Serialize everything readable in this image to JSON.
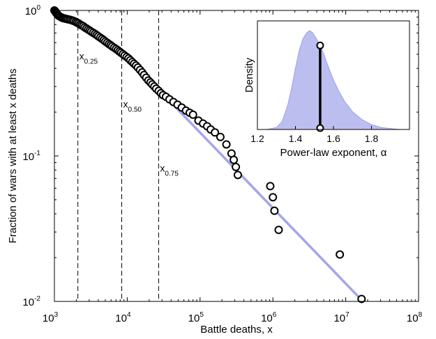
{
  "chart_data": [
    {
      "type": "scatter",
      "title": "",
      "xlabel": "Battle deaths, x",
      "ylabel": "Fraction of wars with at least x deaths",
      "x_scale": "log",
      "y_scale": "log",
      "xlim": [
        1000,
        100000000
      ],
      "ylim": [
        0.01,
        1
      ],
      "x_ticks": [
        {
          "value": 1000,
          "base": "10",
          "exp": "3"
        },
        {
          "value": 10000,
          "base": "10",
          "exp": "4"
        },
        {
          "value": 100000,
          "base": "10",
          "exp": "5"
        },
        {
          "value": 1000000,
          "base": "10",
          "exp": "6"
        },
        {
          "value": 10000000,
          "base": "10",
          "exp": "7"
        },
        {
          "value": 100000000,
          "base": "10",
          "exp": "8"
        }
      ],
      "y_ticks": [
        {
          "value": 0.01,
          "base": "10",
          "exp": "-2"
        },
        {
          "value": 0.1,
          "base": "10",
          "exp": "-1"
        },
        {
          "value": 1,
          "base": "10",
          "exp": "0"
        }
      ],
      "grid": false,
      "colors": {
        "fit_line": "#a3a6e8",
        "markers": "#000000",
        "guides": "#000000"
      },
      "series": [
        {
          "kind": "markers",
          "points": [
            [
              1000,
              1.0
            ],
            [
              1020,
              0.99
            ],
            [
              1040,
              0.975
            ],
            [
              1060,
              0.96
            ],
            [
              1080,
              0.95
            ],
            [
              1110,
              0.935
            ],
            [
              1140,
              0.92
            ],
            [
              1180,
              0.91
            ],
            [
              1230,
              0.9
            ],
            [
              1280,
              0.89
            ],
            [
              1330,
              0.885
            ],
            [
              1390,
              0.88
            ],
            [
              1450,
              0.875
            ],
            [
              1520,
              0.87
            ],
            [
              1600,
              0.865
            ],
            [
              1680,
              0.86
            ],
            [
              1770,
              0.852
            ],
            [
              1860,
              0.845
            ],
            [
              1960,
              0.835
            ],
            [
              2050,
              0.825
            ],
            [
              2150,
              0.815
            ],
            [
              2250,
              0.8
            ],
            [
              2360,
              0.79
            ],
            [
              2480,
              0.78
            ],
            [
              2600,
              0.765
            ],
            [
              2750,
              0.752
            ],
            [
              2900,
              0.74
            ],
            [
              3050,
              0.728
            ],
            [
              3200,
              0.716
            ],
            [
              3400,
              0.703
            ],
            [
              3600,
              0.69
            ],
            [
              3800,
              0.677
            ],
            [
              4000,
              0.664
            ],
            [
              4250,
              0.651
            ],
            [
              4500,
              0.638
            ],
            [
              4750,
              0.625
            ],
            [
              5000,
              0.612
            ],
            [
              5300,
              0.6
            ],
            [
              5600,
              0.588
            ],
            [
              5900,
              0.577
            ],
            [
              6200,
              0.566
            ],
            [
              6600,
              0.555
            ],
            [
              7000,
              0.544
            ],
            [
              7400,
              0.533
            ],
            [
              7800,
              0.522
            ],
            [
              8200,
              0.512
            ],
            [
              8700,
              0.501
            ],
            [
              9200,
              0.49
            ],
            [
              9800,
              0.479
            ],
            [
              10400,
              0.468
            ],
            [
              11000,
              0.455
            ],
            [
              11700,
              0.442
            ],
            [
              12400,
              0.43
            ],
            [
              13200,
              0.418
            ],
            [
              14000,
              0.405
            ],
            [
              15000,
              0.39
            ],
            [
              16000,
              0.375
            ],
            [
              17000,
              0.36
            ],
            [
              18200,
              0.345
            ],
            [
              19500,
              0.33
            ],
            [
              20800,
              0.32
            ],
            [
              22000,
              0.31
            ],
            [
              23500,
              0.3
            ],
            [
              25000,
              0.29
            ],
            [
              27000,
              0.28
            ],
            [
              29000,
              0.27
            ],
            [
              31000,
              0.262
            ],
            [
              34000,
              0.255
            ],
            [
              38000,
              0.245
            ],
            [
              43000,
              0.235
            ],
            [
              49000,
              0.225
            ],
            [
              56000,
              0.215
            ],
            [
              64000,
              0.205
            ],
            [
              72000,
              0.198
            ],
            [
              80000,
              0.192
            ],
            [
              95000,
              0.175
            ],
            [
              110000,
              0.167
            ],
            [
              125000,
              0.16
            ],
            [
              140000,
              0.152
            ],
            [
              160000,
              0.145
            ],
            [
              190000,
              0.135
            ],
            [
              230000,
              0.12
            ],
            [
              270000,
              0.104
            ],
            [
              290000,
              0.094
            ],
            [
              310000,
              0.084
            ],
            [
              330000,
              0.074
            ],
            [
              920000,
              0.062
            ],
            [
              1000000,
              0.052
            ],
            [
              1050000,
              0.042
            ],
            [
              1200000,
              0.031
            ],
            [
              8300000,
              0.021
            ],
            [
              16500000,
              0.0104
            ]
          ]
        },
        {
          "kind": "fit_line",
          "points": [
            [
              11000,
              0.455
            ],
            [
              16000000,
              0.0104
            ]
          ]
        }
      ],
      "annotations": [
        {
          "kind": "vline",
          "x": 2100,
          "label_base": "x",
          "label_sub": "0.25",
          "label_y": 0.46
        },
        {
          "kind": "vline",
          "x": 8400,
          "label_base": "x",
          "label_sub": "0.50",
          "label_y": 0.215
        },
        {
          "kind": "vline",
          "x": 27000,
          "label_base": "x",
          "label_sub": "0.75",
          "label_y": 0.078
        }
      ]
    },
    {
      "type": "area",
      "title": "",
      "xlabel": "Power-law exponent, α",
      "ylabel": "Density",
      "xlim": [
        1.2,
        2.0
      ],
      "x_ticks": [
        "1.2",
        "1.4",
        "1.6",
        "1.8"
      ],
      "y_ticks": [],
      "colors": {
        "fill": "#bcbef0",
        "marker_line": "#000000"
      },
      "marker_alpha": 1.53,
      "density_curve": [
        [
          1.2,
          0.0
        ],
        [
          1.25,
          0.0
        ],
        [
          1.3,
          0.02
        ],
        [
          1.33,
          0.08
        ],
        [
          1.36,
          0.25
        ],
        [
          1.38,
          0.42
        ],
        [
          1.4,
          0.62
        ],
        [
          1.42,
          0.8
        ],
        [
          1.44,
          0.92
        ],
        [
          1.46,
          0.98
        ],
        [
          1.475,
          1.0
        ],
        [
          1.49,
          0.98
        ],
        [
          1.51,
          0.92
        ],
        [
          1.53,
          0.85
        ],
        [
          1.55,
          0.76
        ],
        [
          1.57,
          0.65
        ],
        [
          1.6,
          0.5
        ],
        [
          1.63,
          0.38
        ],
        [
          1.66,
          0.28
        ],
        [
          1.7,
          0.18
        ],
        [
          1.75,
          0.1
        ],
        [
          1.8,
          0.05
        ],
        [
          1.85,
          0.02
        ],
        [
          1.9,
          0.01
        ],
        [
          1.95,
          0.0
        ],
        [
          2.0,
          0.0
        ]
      ]
    }
  ]
}
